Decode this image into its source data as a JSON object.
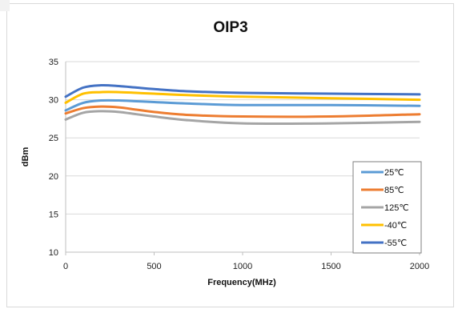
{
  "chart_data": {
    "type": "line",
    "title": "OIP3",
    "xlabel": "Frequency(MHz)",
    "ylabel": "dBm",
    "xlim": [
      0,
      2000
    ],
    "ylim": [
      10,
      35
    ],
    "xticks": [
      0,
      500,
      1000,
      1500,
      2000
    ],
    "yticks": [
      10,
      15,
      20,
      25,
      30,
      35
    ],
    "grid": "horizontal",
    "legend_position": "right",
    "x": [
      0,
      100,
      200,
      300,
      400,
      500,
      700,
      1000,
      1500,
      2000
    ],
    "series": [
      {
        "name": "25℃",
        "color": "#5b9bd5",
        "values": [
          28.6,
          29.6,
          29.9,
          29.9,
          29.8,
          29.7,
          29.5,
          29.3,
          29.3,
          29.2
        ]
      },
      {
        "name": "85℃",
        "color": "#ed7d31",
        "values": [
          28.2,
          28.9,
          29.1,
          29.0,
          28.7,
          28.4,
          28.0,
          27.8,
          27.8,
          28.1
        ]
      },
      {
        "name": "125℃",
        "color": "#a5a5a5",
        "values": [
          27.4,
          28.3,
          28.5,
          28.4,
          28.1,
          27.8,
          27.3,
          26.9,
          26.9,
          27.1
        ]
      },
      {
        "name": "-40℃",
        "color": "#ffc000",
        "values": [
          29.6,
          30.8,
          31.0,
          31.0,
          30.9,
          30.8,
          30.6,
          30.4,
          30.2,
          30.0
        ]
      },
      {
        "name": "-55℃",
        "color": "#4472c4",
        "values": [
          30.4,
          31.6,
          31.9,
          31.8,
          31.6,
          31.4,
          31.1,
          30.9,
          30.8,
          30.7
        ]
      }
    ]
  }
}
